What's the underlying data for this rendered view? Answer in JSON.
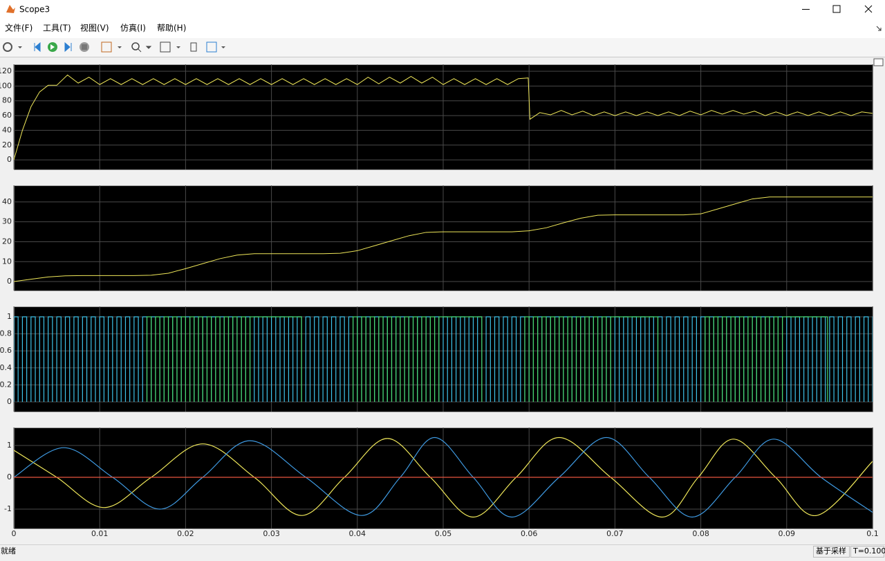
{
  "window": {
    "title": "Scope3"
  },
  "menu": [
    "文件(F)",
    "工具(T)",
    "视图(V)",
    "仿真(I)",
    "帮助(H)"
  ],
  "status": {
    "text": "就绪",
    "sample_mode": "基于采样",
    "time": "T=0.100"
  },
  "chart_data": [
    {
      "type": "line",
      "xlim": [
        0,
        0.1
      ],
      "ylim": [
        -13,
        129.4
      ],
      "yticks": [
        0,
        20,
        40,
        60,
        80,
        100,
        120
      ],
      "xticks": [
        0,
        0.01,
        0.02,
        0.03,
        0.04,
        0.05,
        0.06,
        0.07,
        0.08,
        0.09,
        0.1
      ],
      "xtick_labels": false,
      "grid": true,
      "series": [
        {
          "color": "#f0e85a",
          "x": [
            0,
            0.001,
            0.002,
            0.003,
            0.004,
            0.005,
            0.00625,
            0.0075,
            0.00875,
            0.01,
            0.01125,
            0.0125,
            0.01375,
            0.015,
            0.01625,
            0.0175,
            0.01875,
            0.02,
            0.02125,
            0.0225,
            0.02375,
            0.025,
            0.02625,
            0.0275,
            0.02875,
            0.03,
            0.03125,
            0.0325,
            0.03375,
            0.035,
            0.03625,
            0.0375,
            0.03875,
            0.04,
            0.04125,
            0.0425,
            0.04375,
            0.045,
            0.04625,
            0.0475,
            0.04875,
            0.05,
            0.05125,
            0.0525,
            0.05375,
            0.055,
            0.05625,
            0.0575,
            0.05875,
            0.0599,
            0.0601,
            0.06125,
            0.0625,
            0.06375,
            0.065,
            0.06625,
            0.0675,
            0.06875,
            0.07,
            0.07125,
            0.0725,
            0.07375,
            0.075,
            0.07625,
            0.0775,
            0.07875,
            0.08,
            0.08125,
            0.0825,
            0.08375,
            0.085,
            0.08625,
            0.0875,
            0.08875,
            0.09,
            0.09125,
            0.0925,
            0.09375,
            0.095,
            0.09625,
            0.0975,
            0.09875,
            0.1
          ],
          "values": [
            0,
            40,
            72,
            92,
            101,
            101,
            115,
            104,
            112,
            102,
            110,
            102,
            110,
            102,
            110,
            102,
            110,
            102,
            110,
            102,
            110,
            102,
            110,
            102,
            110,
            102,
            110,
            102,
            110,
            102,
            110,
            102,
            110,
            102,
            112,
            103,
            112,
            104,
            113,
            104,
            112,
            102,
            110,
            102,
            110,
            102,
            110,
            102,
            110,
            111,
            55,
            64,
            61,
            67,
            61,
            66,
            60,
            65,
            60,
            65,
            60,
            65,
            60,
            65,
            60,
            66,
            61,
            67,
            62,
            67,
            62,
            66,
            60,
            65,
            60,
            65,
            60,
            65,
            60,
            65,
            60,
            65,
            63
          ]
        }
      ]
    },
    {
      "type": "line",
      "xlim": [
        0,
        0.1
      ],
      "ylim": [
        -4.5,
        48.3
      ],
      "yticks": [
        0,
        10,
        20,
        30,
        40
      ],
      "xticks": [
        0,
        0.01,
        0.02,
        0.03,
        0.04,
        0.05,
        0.06,
        0.07,
        0.08,
        0.09,
        0.1
      ],
      "xtick_labels": false,
      "grid": true,
      "series": [
        {
          "color": "#f0e85a",
          "x": [
            0,
            0.002,
            0.004,
            0.006,
            0.008,
            0.01,
            0.012,
            0.014,
            0.016,
            0.018,
            0.02,
            0.022,
            0.024,
            0.026,
            0.028,
            0.03,
            0.032,
            0.034,
            0.036,
            0.038,
            0.04,
            0.042,
            0.044,
            0.046,
            0.048,
            0.05,
            0.052,
            0.054,
            0.056,
            0.058,
            0.06,
            0.062,
            0.064,
            0.066,
            0.068,
            0.07,
            0.072,
            0.074,
            0.076,
            0.078,
            0.08,
            0.082,
            0.084,
            0.086,
            0.088,
            0.09,
            0.092,
            0.094,
            0.096,
            0.098,
            0.1
          ],
          "values": [
            0,
            1.2,
            2.3,
            2.9,
            3,
            3,
            3,
            3,
            3.2,
            4.2,
            6.5,
            9,
            11.5,
            13.3,
            14,
            14,
            14,
            14,
            14,
            14.2,
            15.5,
            18,
            20.5,
            23,
            24.7,
            25,
            25,
            25,
            25,
            25,
            25.5,
            27,
            29.5,
            31.8,
            33.3,
            33.5,
            33.5,
            33.5,
            33.5,
            33.5,
            34,
            36.5,
            39,
            41.5,
            42.5,
            42.5,
            42.5,
            42.5,
            42.5,
            42.5,
            42.5
          ]
        }
      ]
    },
    {
      "type": "pulse",
      "xlim": [
        0,
        0.1
      ],
      "ylim": [
        -0.114,
        1.122
      ],
      "yticks": [
        0,
        0.2,
        0.4,
        0.6,
        0.8,
        1
      ],
      "xticks": [
        0,
        0.01,
        0.02,
        0.03,
        0.04,
        0.05,
        0.06,
        0.07,
        0.08,
        0.09,
        0.1
      ],
      "xtick_labels": false,
      "grid": true,
      "series": [
        {
          "color": "#3ec4ea",
          "x": [
            0,
            0.001,
            0.002,
            0.003,
            0.004,
            0.005,
            0.006,
            0.007,
            0.008,
            0.009,
            0.01,
            0.011,
            0.012,
            0.013,
            0.014,
            0.015,
            0.016,
            0.017,
            0.018,
            0.019,
            0.02,
            0.021,
            0.022,
            0.023,
            0.024,
            0.025,
            0.026,
            0.027,
            0.028,
            0.029,
            0.03,
            0.031,
            0.032,
            0.033,
            0.034,
            0.035,
            0.036,
            0.037,
            0.038,
            0.039,
            0.04,
            0.041,
            0.042,
            0.043,
            0.044,
            0.045,
            0.046,
            0.047,
            0.048,
            0.049,
            0.05,
            0.051,
            0.052,
            0.053,
            0.054,
            0.055,
            0.056,
            0.057,
            0.058,
            0.059,
            0.06,
            0.061,
            0.062,
            0.063,
            0.064,
            0.065,
            0.066,
            0.067,
            0.068,
            0.069,
            0.07,
            0.071,
            0.072,
            0.073,
            0.074,
            0.075,
            0.076,
            0.077,
            0.078,
            0.079,
            0.08,
            0.081,
            0.082,
            0.083,
            0.084,
            0.085,
            0.086,
            0.087,
            0.088,
            0.089,
            0.09,
            0.091,
            0.092,
            0.093,
            0.094,
            0.095,
            0.096,
            0.097,
            0.098,
            0.099,
            0.1
          ],
          "values": [
            1,
            1,
            1,
            1,
            1,
            1,
            1,
            1,
            1,
            1,
            1,
            1,
            1,
            1,
            1,
            1,
            1,
            1,
            1,
            1,
            1,
            1,
            1,
            1,
            1,
            1,
            1,
            1,
            1,
            1,
            1,
            1,
            1,
            1,
            1,
            1,
            1,
            1,
            1,
            1,
            1,
            1,
            1,
            1,
            1,
            1,
            1,
            1,
            1,
            1,
            1,
            1,
            1,
            1,
            1,
            1,
            1,
            1,
            1,
            1,
            1,
            1,
            1,
            1,
            1,
            1,
            1,
            1,
            1,
            1,
            1,
            1,
            1,
            1,
            1,
            1,
            1,
            1,
            1,
            1,
            1,
            1,
            1,
            1,
            1,
            1,
            1,
            1,
            1,
            1,
            1,
            1,
            1,
            1,
            1,
            1,
            1,
            1,
            1,
            1,
            1
          ]
        },
        {
          "color": "#48d66a",
          "x": [
            0.0155,
            0.0165,
            0.0175,
            0.0185,
            0.0195,
            0.0205,
            0.0215,
            0.0225,
            0.0235,
            0.0245,
            0.0255,
            0.0265,
            0.0275,
            0.0395,
            0.0405,
            0.0415,
            0.0425,
            0.0435,
            0.0445,
            0.0455,
            0.0465,
            0.0475,
            0.0485,
            0.0495,
            0.0595,
            0.0605,
            0.0615,
            0.0625,
            0.0635,
            0.0645,
            0.0655,
            0.0665,
            0.0675,
            0.0685,
            0.0695,
            0.0805,
            0.0815,
            0.0825,
            0.0835,
            0.0845,
            0.0855,
            0.0865,
            0.0875,
            0.0885,
            0.0895
          ],
          "values": [
            1,
            1,
            1,
            1,
            1,
            1,
            1,
            1,
            1,
            1,
            1,
            1,
            1,
            1,
            1,
            1,
            1,
            1,
            1,
            1,
            1,
            1,
            1,
            1,
            1,
            1,
            1,
            1,
            1,
            1,
            1,
            1,
            1,
            1,
            1,
            1,
            1,
            1,
            1,
            1,
            1,
            1,
            1,
            1,
            1
          ]
        }
      ]
    },
    {
      "type": "smooth-line",
      "xlim": [
        0,
        0.1
      ],
      "ylim": [
        -1.609,
        1.565
      ],
      "yticks": [
        -1,
        0,
        1
      ],
      "xticks": [
        0,
        0.01,
        0.02,
        0.03,
        0.04,
        0.05,
        0.06,
        0.07,
        0.08,
        0.09,
        0.1
      ],
      "xtick_labels": true,
      "grid": true,
      "series": [
        {
          "color": "#f0e85a",
          "x": [
            0,
            0.005,
            0.0105,
            0.016,
            0.022,
            0.028,
            0.0335,
            0.0385,
            0.0435,
            0.0485,
            0.0535,
            0.0585,
            0.0635,
            0.0695,
            0.0755,
            0.0797,
            0.0838,
            0.0887,
            0.0935,
            0.1
          ],
          "values": [
            0.85,
            0,
            -0.95,
            0,
            1.05,
            0,
            -1.2,
            0,
            1.22,
            0,
            -1.25,
            0,
            1.25,
            0,
            -1.25,
            0,
            1.2,
            0,
            -1.2,
            0.5
          ]
        },
        {
          "color": "#3f9be3",
          "x": [
            0,
            0.0058,
            0.0115,
            0.017,
            0.022,
            0.0275,
            0.034,
            0.0405,
            0.045,
            0.049,
            0.0535,
            0.058,
            0.0635,
            0.069,
            0.074,
            0.079,
            0.084,
            0.0885,
            0.094,
            0.1
          ],
          "values": [
            0,
            0.93,
            0,
            -1,
            0,
            1.15,
            0,
            -1.2,
            0,
            1.25,
            0,
            -1.25,
            0,
            1.25,
            0,
            -1.25,
            0,
            1.2,
            0,
            -1.1
          ]
        },
        {
          "color": "#e8553f",
          "x": [
            0,
            0.1
          ],
          "values": [
            0,
            0
          ]
        }
      ]
    }
  ]
}
